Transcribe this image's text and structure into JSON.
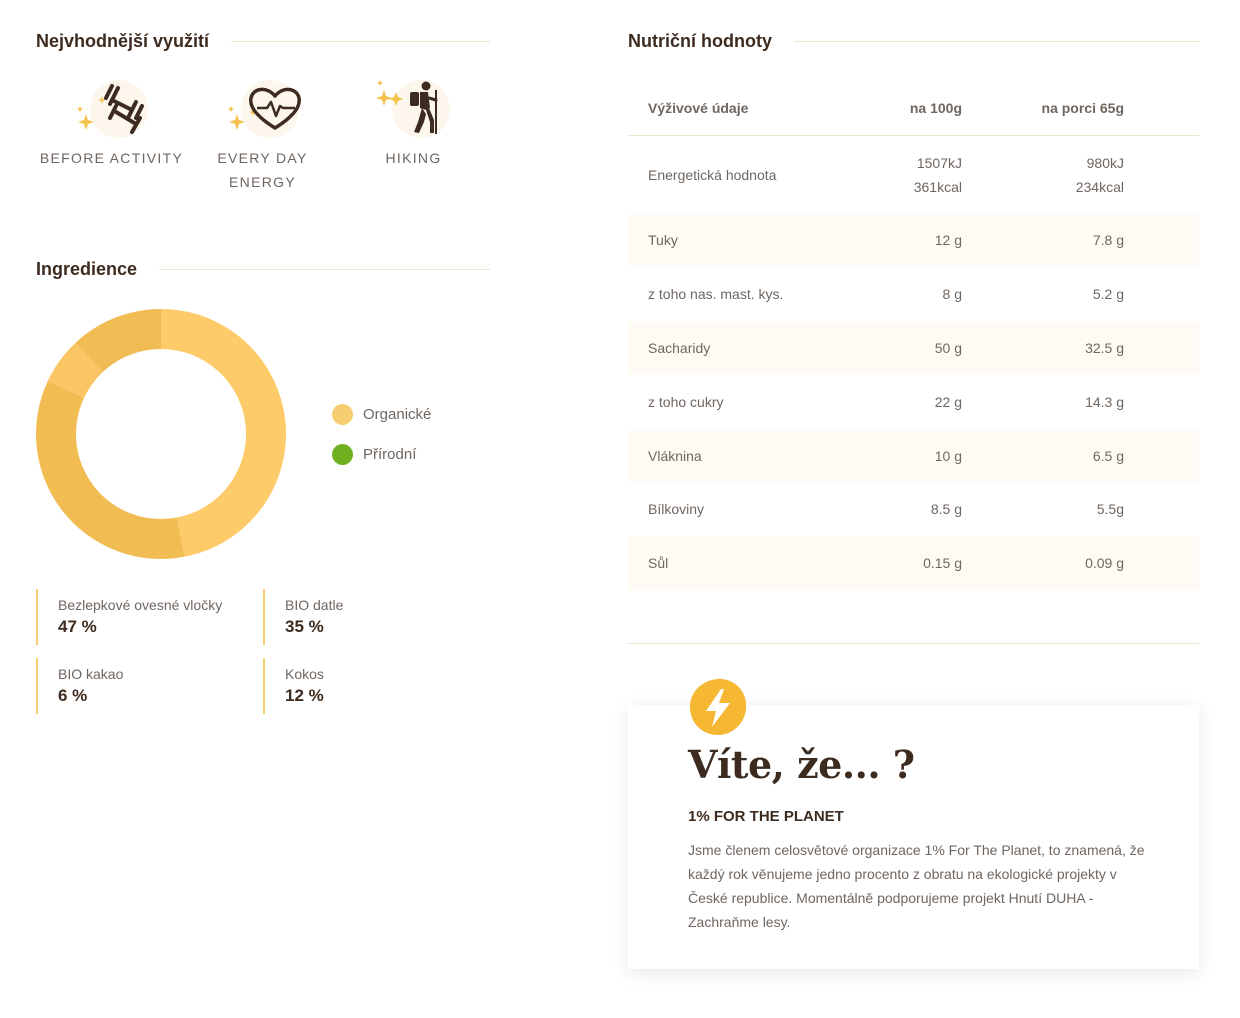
{
  "usage_section": {
    "title": "Nejvhodnější využití",
    "items": [
      {
        "label": "BEFORE ACTIVITY",
        "icon": "dumbbell-icon"
      },
      {
        "label": "EVERY DAY ENERGY",
        "icon": "heart-pulse-icon"
      },
      {
        "label": "HIKING",
        "icon": "hiker-icon"
      }
    ]
  },
  "ingredients_section": {
    "title": "Ingredience",
    "legend": [
      {
        "label": "Organické",
        "color": "#f7cd71"
      },
      {
        "label": "Přírodní",
        "color": "#6fb020"
      }
    ],
    "items": [
      {
        "name": "Bezlepkové ovesné vločky",
        "percent": "47 %"
      },
      {
        "name": "BIO datle",
        "percent": "35 %"
      },
      {
        "name": "BIO kakao",
        "percent": "6 %"
      },
      {
        "name": "Kokos",
        "percent": "12 %"
      }
    ]
  },
  "chart_data": {
    "type": "pie",
    "categories": [
      "Bezlepkové ovesné vločky",
      "BIO datle",
      "BIO kakao",
      "Kokos"
    ],
    "values": [
      47,
      35,
      6,
      12
    ],
    "colors": [
      "#fecb6a",
      "#f1bd52",
      "#fbc563",
      "#f0bc53"
    ]
  },
  "nutrition_section": {
    "title": "Nutriční hodnoty",
    "headers": [
      "Výživové údaje",
      "na 100g",
      "na porci 65g"
    ],
    "rows": [
      {
        "label": "Energetická hodnota",
        "per100": [
          "1507kJ",
          "361kcal"
        ],
        "portion": [
          "980kJ",
          "234kcal"
        ]
      },
      {
        "label": "Tuky",
        "per100": [
          "12 g"
        ],
        "portion": [
          "7.8 g"
        ]
      },
      {
        "label": "z toho nas. mast. kys.",
        "per100": [
          "8 g"
        ],
        "portion": [
          "5.2 g"
        ]
      },
      {
        "label": "Sacharidy",
        "per100": [
          "50 g"
        ],
        "portion": [
          "32.5 g"
        ]
      },
      {
        "label": "z toho cukry",
        "per100": [
          "22 g"
        ],
        "portion": [
          "14.3 g"
        ]
      },
      {
        "label": "Vláknina",
        "per100": [
          "10 g"
        ],
        "portion": [
          "6.5 g"
        ]
      },
      {
        "label": "Bílkoviny",
        "per100": [
          "8.5 g"
        ],
        "portion": [
          "5.5g"
        ]
      },
      {
        "label": "Sůl",
        "per100": [
          "0.15 g"
        ],
        "portion": [
          "0.09 g"
        ]
      }
    ]
  },
  "did_you_know": {
    "icon": "lightning-icon",
    "heading": "Víte, že... ?",
    "subtitle": "1% FOR THE PLANET",
    "text": "Jsme členem celosvětové organizace 1% For The Planet, to znamená, že každý rok věnujeme jedno procento z obratu na ekologické projekty v České republice. Momentálně podporujeme projekt Hnutí DUHA - Zachraňme lesy."
  }
}
